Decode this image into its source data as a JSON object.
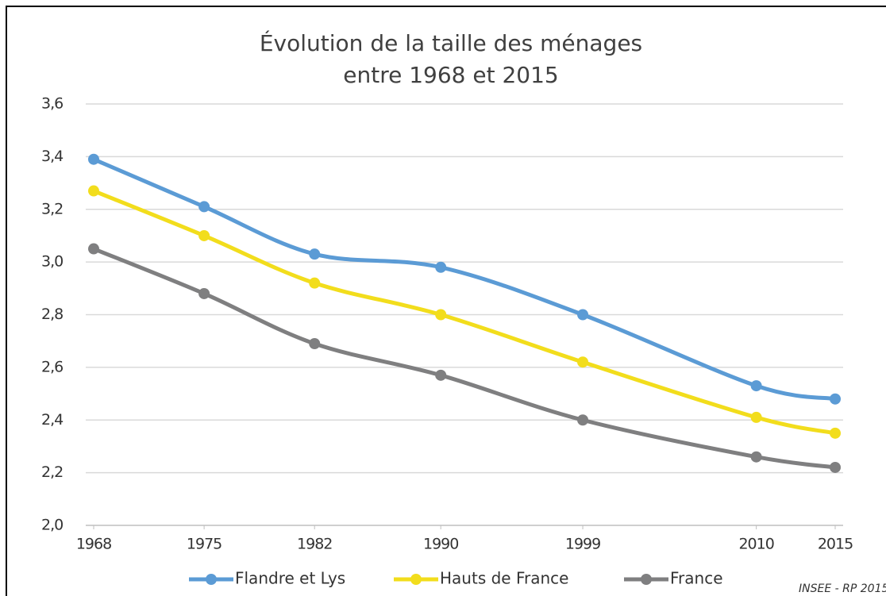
{
  "chart_data": {
    "type": "line",
    "title": [
      "Évolution de la taille des ménages",
      "entre 1968 et 2015"
    ],
    "x": [
      1968,
      1975,
      1982,
      1990,
      1999,
      2010,
      2015
    ],
    "xlim": [
      1968,
      2015
    ],
    "xticks": [
      1968,
      1975,
      1982,
      1990,
      1999,
      2010,
      2015
    ],
    "ylim": [
      2.0,
      3.6
    ],
    "yticks": [
      {
        "value": 2.0,
        "label": "2,0"
      },
      {
        "value": 2.2,
        "label": "2,2"
      },
      {
        "value": 2.4,
        "label": "2,4"
      },
      {
        "value": 2.6,
        "label": "2,6"
      },
      {
        "value": 2.8,
        "label": "2,8"
      },
      {
        "value": 3.0,
        "label": "3,0"
      },
      {
        "value": 3.2,
        "label": "3,2"
      },
      {
        "value": 3.4,
        "label": "3,4"
      },
      {
        "value": 3.6,
        "label": "3,6"
      }
    ],
    "grid": true,
    "legend": "bottom",
    "series": [
      {
        "name": "Flandre et Lys",
        "color": "#5b9bd5",
        "values": [
          3.39,
          3.21,
          3.03,
          2.98,
          2.8,
          2.53,
          2.48
        ]
      },
      {
        "name": "Hauts de France",
        "color": "#f2dd1c",
        "values": [
          3.27,
          3.1,
          2.92,
          2.8,
          2.62,
          2.41,
          2.35
        ]
      },
      {
        "name": "France",
        "color": "#7f7f80",
        "values": [
          3.05,
          2.88,
          2.69,
          2.57,
          2.4,
          2.26,
          2.22
        ]
      }
    ],
    "source": "INSEE - RP 2015"
  }
}
